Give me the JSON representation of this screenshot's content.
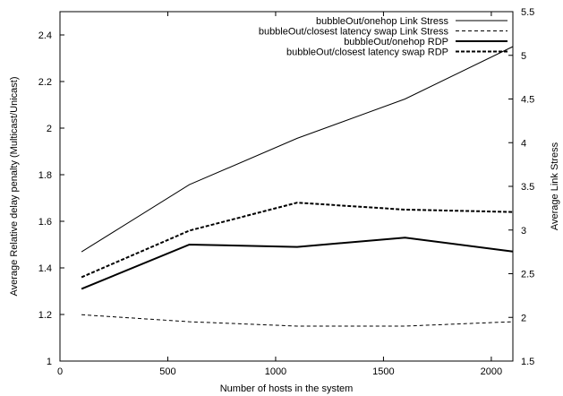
{
  "chart_data": {
    "type": "line",
    "xlabel": "Number of hosts in the system",
    "ylabel_left": "Average Relative delay penalty (Multicast/Unicast)",
    "ylabel_right": "Average Link Stress",
    "xlim": [
      0,
      2100
    ],
    "ylim_left": [
      1,
      2.5
    ],
    "ylim_right": [
      1.5,
      5.5
    ],
    "x_ticks": [
      0,
      500,
      1000,
      1500,
      2000
    ],
    "y_ticks_left": [
      1,
      1.2,
      1.4,
      1.6,
      1.8,
      2,
      2.2,
      2.4
    ],
    "y_ticks_right": [
      1.5,
      2,
      2.5,
      3,
      3.5,
      4,
      4.5,
      5,
      5.5
    ],
    "legend_position": "top-right",
    "grid": false,
    "series": [
      {
        "name": "bubbleOut/onehop Link Stress",
        "axis": "right",
        "style": "thin-solid",
        "x": [
          100,
          600,
          1100,
          1600,
          2100
        ],
        "y": [
          2.75,
          3.52,
          4.05,
          4.5,
          5.1
        ]
      },
      {
        "name": "bubbleOut/closest latency swap Link Stress",
        "axis": "right",
        "style": "thin-dashed",
        "x": [
          100,
          600,
          1100,
          1600,
          2100
        ],
        "y": [
          2.03,
          1.95,
          1.9,
          1.9,
          1.95
        ]
      },
      {
        "name": "bubbleOut/onehop RDP",
        "axis": "left",
        "style": "thick-solid",
        "x": [
          100,
          600,
          1100,
          1600,
          2100
        ],
        "y": [
          1.31,
          1.5,
          1.49,
          1.53,
          1.47
        ]
      },
      {
        "name": "bubbleOut/closest latency swap RDP",
        "axis": "left",
        "style": "thick-dashed",
        "x": [
          100,
          600,
          1100,
          1600,
          2100
        ],
        "y": [
          1.36,
          1.56,
          1.68,
          1.65,
          1.64
        ]
      }
    ]
  }
}
